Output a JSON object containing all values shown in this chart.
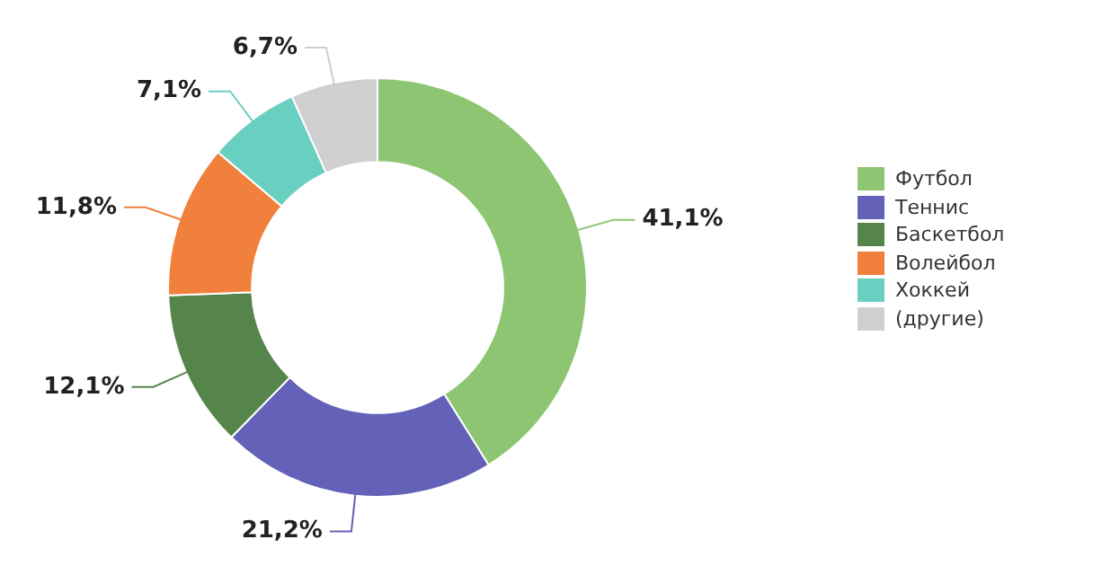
{
  "chart_data": {
    "type": "donut",
    "categories": [
      "Футбол",
      "Теннис",
      "Баскетбол",
      "Волейбол",
      "Хоккей",
      "(другие)"
    ],
    "values": [
      41.1,
      21.2,
      12.1,
      11.8,
      7.1,
      6.7
    ],
    "colors": [
      "#8dc572",
      "#6461b8",
      "#55854b",
      "#f0803c",
      "#69cfc0",
      "#cfcfcf"
    ],
    "value_labels": [
      "41,1%",
      "21,2%",
      "12,1%",
      "11,8%",
      "7,1%",
      "6,7%"
    ],
    "legend": "right"
  }
}
